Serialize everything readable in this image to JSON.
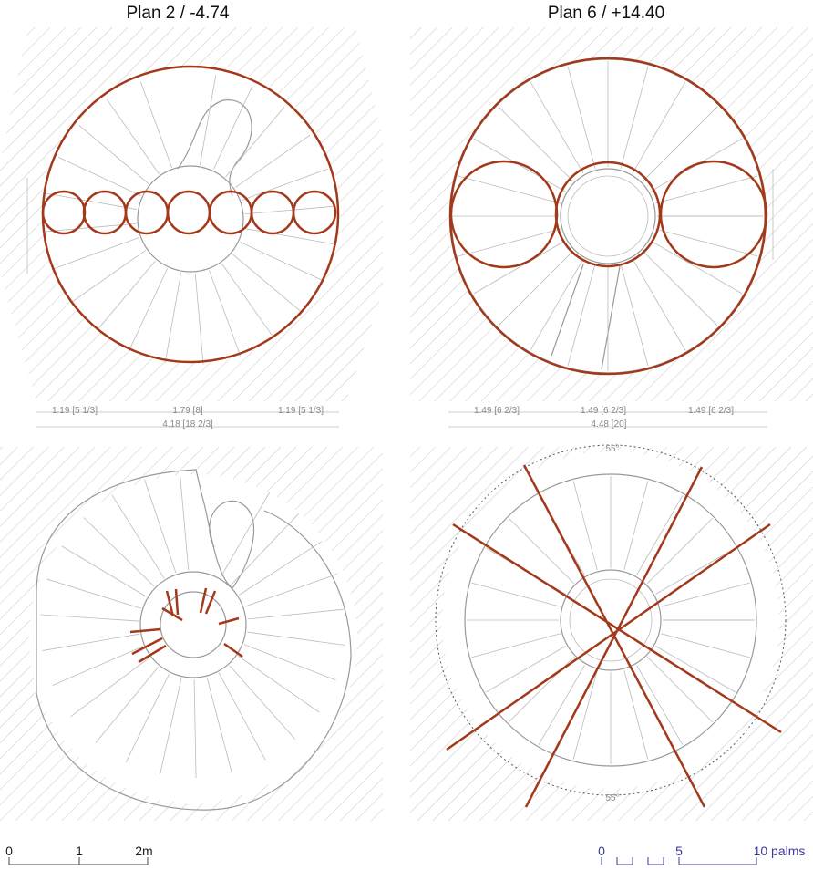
{
  "plans": [
    {
      "title": "Plan 2 / -4.74",
      "dimensions": [
        "1.19 [5 1/3]",
        "1.79 [8]",
        "1.19 [5 1/3]"
      ],
      "total": "4.18 [18 2/3]"
    },
    {
      "title": "Plan 6 / +14.40",
      "dimensions": [
        "1.49 [6 2/3]",
        "1.49 [6 2/3]",
        "1.49 [6 2/3]"
      ],
      "total": "4.48 [20]"
    }
  ],
  "angle_labels": [
    "55°",
    "55°"
  ],
  "scale_bars": [
    {
      "labels": [
        "0",
        "1",
        "2m"
      ]
    },
    {
      "labels": [
        "0",
        "5",
        "10 palms"
      ]
    }
  ]
}
